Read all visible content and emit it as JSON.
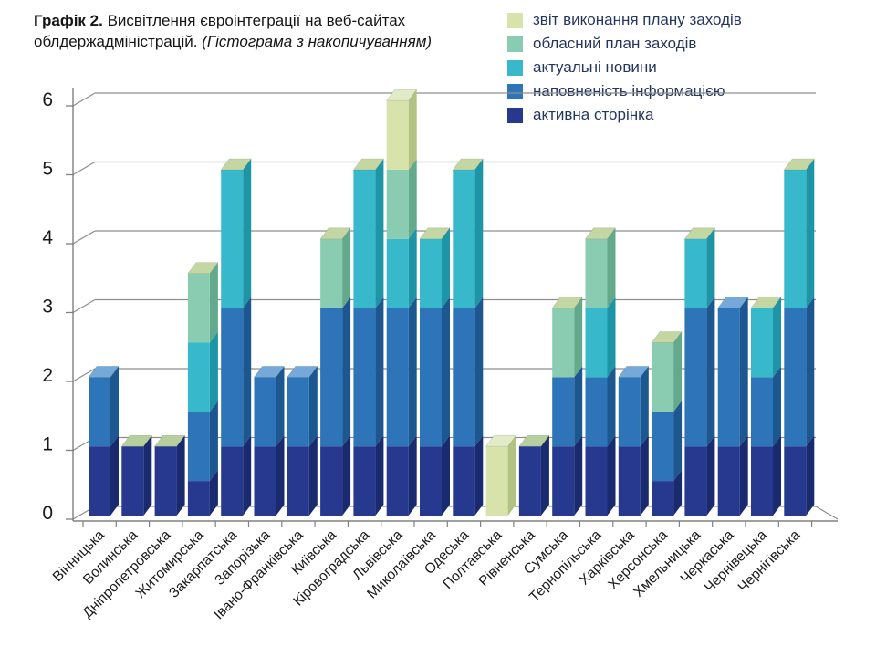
{
  "header": {
    "label": "Графік 2.",
    "title": "Висвітлення євроінтеграції на веб-сайтах облдержадміністрацій.",
    "subtitle": "(Гістограма з накопичуванням)"
  },
  "chart_data": {
    "type": "bar",
    "subtype": "stacked-3d",
    "title": "Графік 2. Висвітлення євроінтеграції на веб-сайтах облдержадміністрацій. (Гістограма з накопичуванням)",
    "xlabel": "",
    "ylabel": "",
    "ylim": [
      0,
      6
    ],
    "y_ticks": [
      0,
      1,
      2,
      3,
      4,
      5,
      6
    ],
    "grid": true,
    "legend_position": "top-right",
    "categories": [
      "Вінницька",
      "Волинська",
      "Дніпропетровська",
      "Житомирська",
      "Закарпатська",
      "Запорізька",
      "Івано-Франківська",
      "Київська",
      "Кіровоградська",
      "Львівська",
      "Миколаївська",
      "Одеська",
      "Полтавська",
      "Рівненська",
      "Сумська",
      "Тернопільська",
      "Харківська",
      "Херсонська",
      "Хмельницька",
      "Черкаська",
      "Чернівецька",
      "Чернігівська"
    ],
    "series": [
      {
        "name": "активна сторінка",
        "color": "#27398f",
        "side_color": "#1a2a6e",
        "cap_color": "#b7cf9f",
        "values": [
          1,
          1,
          1,
          0.5,
          1,
          1,
          1,
          1,
          1,
          1,
          1,
          1,
          0,
          1,
          1,
          1,
          1,
          0.5,
          1,
          1,
          1,
          1
        ]
      },
      {
        "name": "наповненість інформацією",
        "color": "#2e74b8",
        "side_color": "#1d578f",
        "cap_color": "#74a9da",
        "values": [
          1,
          0,
          0,
          1,
          2,
          1,
          1,
          2,
          2,
          2,
          2,
          2,
          0,
          0,
          1,
          1,
          1,
          1,
          2,
          2,
          1,
          2
        ]
      },
      {
        "name": "актуальні новини",
        "color": "#38b9cb",
        "side_color": "#1e95a6",
        "cap_color": "#c4d7a3",
        "values": [
          0,
          0,
          0,
          1,
          2,
          0,
          0,
          0,
          2,
          1,
          1,
          2,
          0,
          0,
          0,
          1,
          0,
          0,
          1,
          0,
          1,
          2
        ]
      },
      {
        "name": "обласний план заходів",
        "color": "#8accb2",
        "side_color": "#63a98c",
        "cap_color": "#c4d7a3",
        "values": [
          0,
          0,
          0,
          1,
          0,
          0,
          0,
          1,
          0,
          1,
          0,
          0,
          0,
          0,
          1,
          1,
          0,
          1,
          0,
          0,
          0,
          0
        ]
      },
      {
        "name": "звіт виконання плану заходів",
        "color": "#d7e3ab",
        "side_color": "#b2c283",
        "cap_color": "#e2ebc8",
        "values": [
          0,
          0,
          0,
          0,
          0,
          0,
          0,
          0,
          0,
          1,
          0,
          0,
          1,
          0,
          0,
          0,
          0,
          0,
          0,
          0,
          0,
          0
        ]
      }
    ],
    "legend_order": [
      4,
      3,
      2,
      1,
      0
    ],
    "colors": {
      "gridline": "#8f8f8f",
      "axis": "#808080",
      "tick_label": "#1a1a1a",
      "legend_text": "#25365e"
    }
  }
}
